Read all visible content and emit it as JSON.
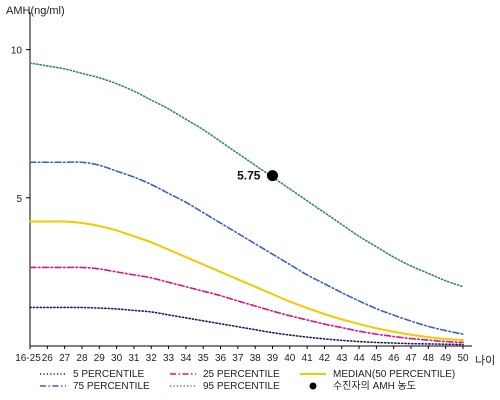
{
  "chart_data": {
    "type": "line",
    "ylabel": "AMH(ng/ml)",
    "xlabel": "나이",
    "ylim": [
      0,
      11
    ],
    "yticks": [
      5,
      10
    ],
    "categories": [
      "16-25",
      "26",
      "27",
      "28",
      "29",
      "30",
      "31",
      "32",
      "33",
      "34",
      "35",
      "36",
      "37",
      "38",
      "39",
      "40",
      "41",
      "42",
      "43",
      "44",
      "45",
      "46",
      "47",
      "48",
      "49",
      "50"
    ],
    "series": [
      {
        "name": "5 PERCENTILE",
        "color": "#1a1a6e",
        "style": "dotted",
        "values": [
          1.3,
          1.3,
          1.3,
          1.3,
          1.28,
          1.25,
          1.2,
          1.15,
          1.05,
          0.95,
          0.85,
          0.75,
          0.65,
          0.55,
          0.45,
          0.37,
          0.3,
          0.24,
          0.19,
          0.15,
          0.12,
          0.1,
          0.08,
          0.07,
          0.06,
          0.05
        ]
      },
      {
        "name": "25 PERCENTILE",
        "color": "#e0147a",
        "style": "dashdot",
        "values": [
          2.65,
          2.65,
          2.65,
          2.65,
          2.6,
          2.5,
          2.4,
          2.3,
          2.15,
          2.0,
          1.85,
          1.7,
          1.52,
          1.35,
          1.18,
          1.02,
          0.88,
          0.74,
          0.62,
          0.5,
          0.4,
          0.32,
          0.25,
          0.2,
          0.15,
          0.12
        ]
      },
      {
        "name": "MEDIAN(50 PERCENTILE)",
        "color": "#f5c800",
        "style": "solid",
        "values": [
          4.2,
          4.2,
          4.2,
          4.15,
          4.05,
          3.9,
          3.7,
          3.5,
          3.25,
          3.0,
          2.75,
          2.5,
          2.25,
          2.0,
          1.75,
          1.5,
          1.28,
          1.08,
          0.9,
          0.74,
          0.6,
          0.48,
          0.38,
          0.3,
          0.24,
          0.2
        ]
      },
      {
        "name": "75 PERCENTILE",
        "color": "#3a5fc8",
        "style": "dashdot",
        "values": [
          6.2,
          6.2,
          6.2,
          6.2,
          6.1,
          5.9,
          5.7,
          5.45,
          5.15,
          4.85,
          4.5,
          4.15,
          3.8,
          3.45,
          3.1,
          2.75,
          2.4,
          2.1,
          1.8,
          1.52,
          1.26,
          1.04,
          0.84,
          0.66,
          0.52,
          0.4
        ]
      },
      {
        "name": "95 PERCENTILE",
        "color": "#2e8b57",
        "style": "dotted",
        "values": [
          9.55,
          9.45,
          9.35,
          9.2,
          9.05,
          8.85,
          8.6,
          8.3,
          8.0,
          7.65,
          7.3,
          6.9,
          6.5,
          6.1,
          5.7,
          5.3,
          4.9,
          4.5,
          4.1,
          3.7,
          3.35,
          3.0,
          2.7,
          2.45,
          2.2,
          2.0
        ]
      }
    ],
    "annotations": [
      {
        "name": "수진자의 AMH 농도",
        "x": "39",
        "y": 5.75,
        "label": "5.75",
        "color": "#000000"
      }
    ],
    "legend_position": "bottom",
    "grid": false
  }
}
